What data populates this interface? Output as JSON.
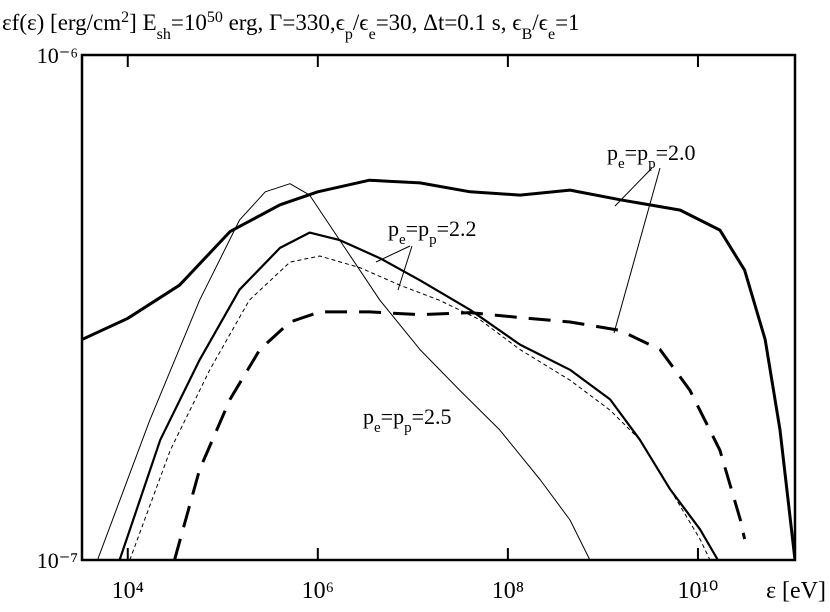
{
  "chart_data": {
    "type": "line",
    "title_parts": [
      {
        "text": "εf(ε) [erg/cm"
      },
      {
        "text": "2",
        "shift": "super"
      },
      {
        "text": "] E"
      },
      {
        "text": "sh",
        "shift": "sub"
      },
      {
        "text": "=10"
      },
      {
        "text": "50",
        "shift": "super"
      },
      {
        "text": " erg, Γ=330,ϵ"
      },
      {
        "text": "p",
        "shift": "sub"
      },
      {
        "text": "/ϵ"
      },
      {
        "text": "e",
        "shift": "sub"
      },
      {
        "text": "=30, Δt=0.1 s, ϵ"
      },
      {
        "text": "B",
        "shift": "sub"
      },
      {
        "text": "/ϵ"
      },
      {
        "text": "e",
        "shift": "sub"
      },
      {
        "text": "=1"
      }
    ],
    "x_label": "ε [eV]",
    "x_log": true,
    "y_log": true,
    "xlim": [
      3300,
      105000000000
    ],
    "ylim": [
      1e-07,
      1e-06
    ],
    "xticks": [
      {
        "value": 10000,
        "label": "10⁴"
      },
      {
        "value": 1000000,
        "label": "10⁶"
      },
      {
        "value": 100000000,
        "label": "10⁸"
      },
      {
        "value": 10000000000,
        "label": "10¹⁰"
      }
    ],
    "yticks": [
      {
        "value": 1e-07,
        "label": "10⁻⁷"
      },
      {
        "value": 1e-06,
        "label": "10⁻⁶"
      }
    ],
    "series": [
      {
        "color": "#000000",
        "width": 3,
        "dash": "none",
        "x": [
          3280,
          10000,
          35000,
          119000,
          400000,
          1000000,
          3500000,
          11900000,
          40000000,
          134000000,
          450000000,
          1500000000,
          6500000000,
          17000000000,
          31000000000,
          51000000000,
          73000000000,
          105000000000
        ],
        "values": [
          2.73e-07,
          3.01e-07,
          3.5e-07,
          4.47e-07,
          5.05e-07,
          5.36e-07,
          5.65e-07,
          5.58e-07,
          5.36e-07,
          5.28e-07,
          5.4e-07,
          5.17e-07,
          4.93e-07,
          4.5e-07,
          3.75e-07,
          2.73e-07,
          1.81e-07,
          1e-07
        ]
      },
      {
        "color": "#000000",
        "width": 3,
        "dash": "22 12",
        "x": [
          31000,
          57000,
          119000,
          245000,
          510000,
          1050000,
          3500000,
          11900000,
          40000000,
          134000000,
          450000000,
          1500000000,
          4000000000,
          8200000000,
          17000000000,
          28000000000,
          31000000000
        ],
        "values": [
          1e-07,
          1.51e-07,
          2.08e-07,
          2.61e-07,
          2.96e-07,
          3.1e-07,
          3.1e-07,
          3.06e-07,
          3.09e-07,
          3.02e-07,
          2.96e-07,
          2.85e-07,
          2.61e-07,
          2.17e-07,
          1.65e-07,
          1.2e-07,
          1.1e-07
        ]
      },
      {
        "color": "#000000",
        "width": 1,
        "dash": "none",
        "x": [
          4800,
          17000,
          57000,
          150000,
          280000,
          510000,
          820000,
          1700000,
          4500000,
          11900000,
          31000000,
          82000000,
          220000000,
          450000000,
          730000000
        ],
        "values": [
          1e-07,
          1.89e-07,
          3.27e-07,
          4.71e-07,
          5.36e-07,
          5.56e-07,
          5.28e-07,
          4.3e-07,
          3.27e-07,
          2.61e-07,
          2.17e-07,
          1.81e-07,
          1.44e-07,
          1.2e-07,
          1e-07
        ]
      },
      {
        "color": "#000000",
        "width": 2.2,
        "dash": "none",
        "x": [
          8200,
          22000,
          57000,
          150000,
          400000,
          820000,
          1700000,
          4500000,
          11900000,
          40000000,
          134000000,
          450000000,
          1190000000,
          2450000000,
          5100000000,
          10500000000,
          16200000000
        ],
        "values": [
          1e-07,
          1.73e-07,
          2.49e-07,
          3.43e-07,
          4.15e-07,
          4.45e-07,
          4.3e-07,
          3.96e-07,
          3.58e-07,
          3.13e-07,
          2.67e-07,
          2.38e-07,
          2.08e-07,
          1.73e-07,
          1.38e-07,
          1.15e-07,
          1e-07
        ]
      },
      {
        "color": "#000000",
        "width": 1,
        "dash": "4 3",
        "x": [
          10500,
          28000,
          73000,
          190000,
          510000,
          1050000,
          2800000,
          7300000,
          19000000,
          51000000,
          134000000,
          450000000,
          1190000000,
          2450000000,
          5100000000,
          10500000000,
          13400000000
        ],
        "values": [
          1e-07,
          1.65e-07,
          2.38e-07,
          3.27e-07,
          3.89e-07,
          4e-07,
          3.79e-07,
          3.5e-07,
          3.27e-07,
          2.99e-07,
          2.61e-07,
          2.27e-07,
          1.98e-07,
          1.73e-07,
          1.38e-07,
          1.1e-07,
          1e-07
        ]
      }
    ],
    "annotations": [
      {
        "parts": [
          {
            "text": "p"
          },
          {
            "text": "e",
            "shift": "sub"
          },
          {
            "text": "=p"
          },
          {
            "text": "p",
            "shift": "sub"
          },
          {
            "text": "=2.0"
          }
        ]
      },
      {
        "parts": [
          {
            "text": "p"
          },
          {
            "text": "e",
            "shift": "sub"
          },
          {
            "text": "=p"
          },
          {
            "text": "p",
            "shift": "sub"
          },
          {
            "text": "=2.2"
          }
        ]
      },
      {
        "parts": [
          {
            "text": "p"
          },
          {
            "text": "e",
            "shift": "sub"
          },
          {
            "text": "=p"
          },
          {
            "text": "p",
            "shift": "sub"
          },
          {
            "text": "=2.5"
          }
        ]
      }
    ]
  }
}
